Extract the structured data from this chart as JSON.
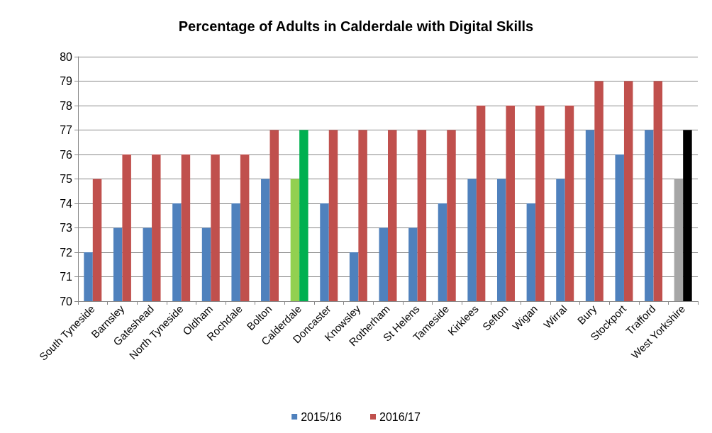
{
  "chart_data": {
    "type": "bar",
    "title": "Percentage of Adults in Calderdale with Digital Skills",
    "categories": [
      "South Tyneside",
      "Barnsley",
      "Gateshead",
      "North Tyneside",
      "Oldham",
      "Rochdale",
      "Bolton",
      "Calderdale",
      "Doncaster",
      "Knowsley",
      "Rotherham",
      "St Helens",
      "Tameside",
      "Kirklees",
      "Sefton",
      "Wigan",
      "Wirral",
      "Bury",
      "Stockport",
      "Trafford",
      "West Yorkshire"
    ],
    "series": [
      {
        "name": "2015/16",
        "color": "#4f81bd",
        "colors": [
          "#4f81bd",
          "#4f81bd",
          "#4f81bd",
          "#4f81bd",
          "#4f81bd",
          "#4f81bd",
          "#4f81bd",
          "#92d050",
          "#4f81bd",
          "#4f81bd",
          "#4f81bd",
          "#4f81bd",
          "#4f81bd",
          "#4f81bd",
          "#4f81bd",
          "#4f81bd",
          "#4f81bd",
          "#4f81bd",
          "#4f81bd",
          "#4f81bd",
          "#a6a6a6"
        ],
        "values": [
          72,
          73,
          73,
          74,
          73,
          74,
          75,
          75,
          74,
          72,
          73,
          73,
          74,
          75,
          75,
          74,
          75,
          77,
          76,
          77,
          75
        ]
      },
      {
        "name": "2016/17",
        "color": "#c0504d",
        "colors": [
          "#c0504d",
          "#c0504d",
          "#c0504d",
          "#c0504d",
          "#c0504d",
          "#c0504d",
          "#c0504d",
          "#00b050",
          "#c0504d",
          "#c0504d",
          "#c0504d",
          "#c0504d",
          "#c0504d",
          "#c0504d",
          "#c0504d",
          "#c0504d",
          "#c0504d",
          "#c0504d",
          "#c0504d",
          "#c0504d",
          "#000000"
        ],
        "values": [
          75,
          76,
          76,
          76,
          76,
          76,
          77,
          77,
          77,
          77,
          77,
          77,
          77,
          78,
          78,
          78,
          78,
          79,
          79,
          79,
          77
        ]
      }
    ],
    "ylim": [
      70,
      80
    ],
    "yticks": [
      70,
      71,
      72,
      73,
      74,
      75,
      76,
      77,
      78,
      79,
      80
    ],
    "grid": "y",
    "legend": "bottom"
  }
}
